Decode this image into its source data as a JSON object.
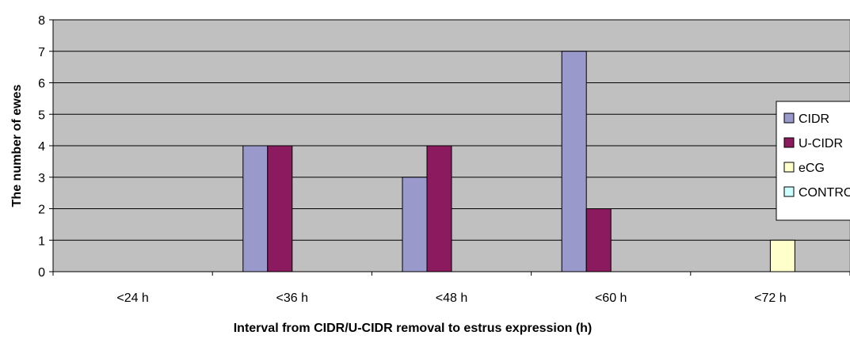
{
  "chart_data": {
    "type": "bar",
    "title": "",
    "xlabel": "Interval from CIDR/U-CIDR removal to estrus expression (h)",
    "ylabel": "The number of ewes",
    "ylim": [
      0,
      8
    ],
    "yticks": [
      "0",
      "1",
      "2",
      "3",
      "4",
      "5",
      "6",
      "7",
      "8"
    ],
    "categories": [
      "<24 h",
      "<36 h",
      "<48 h",
      "<60 h",
      "<72 h"
    ],
    "series": [
      {
        "name": "CIDR",
        "color": "#9999cc",
        "values": [
          0,
          4,
          3,
          7,
          0
        ]
      },
      {
        "name": "U-CIDR",
        "color": "#8b1a5e",
        "values": [
          0,
          4,
          4,
          2,
          0
        ]
      },
      {
        "name": "eCG",
        "color": "#ffffcc",
        "values": [
          0,
          0,
          0,
          0,
          1
        ]
      },
      {
        "name": "CONTROL",
        "color": "#ccffff",
        "values": [
          0,
          0,
          0,
          0,
          0
        ]
      }
    ],
    "grid": true,
    "plot_background": "#c0c0c0",
    "legend_position": "right"
  }
}
